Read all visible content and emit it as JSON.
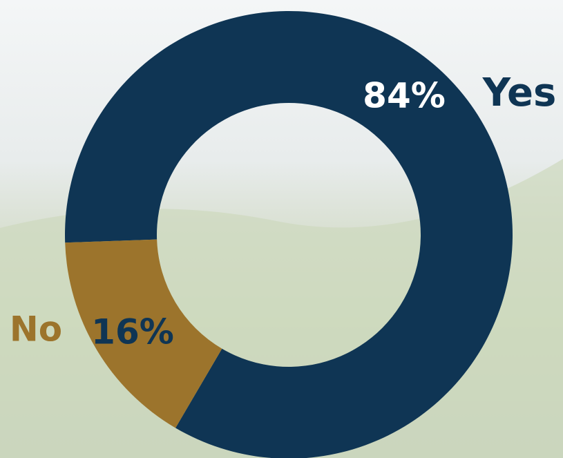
{
  "chart_data": {
    "type": "donut",
    "categories": [
      "Yes",
      "No"
    ],
    "values": [
      84,
      16
    ],
    "value_labels": [
      "84%",
      "16%"
    ],
    "colors": [
      "#0f3554",
      "#9c742c"
    ]
  }
}
